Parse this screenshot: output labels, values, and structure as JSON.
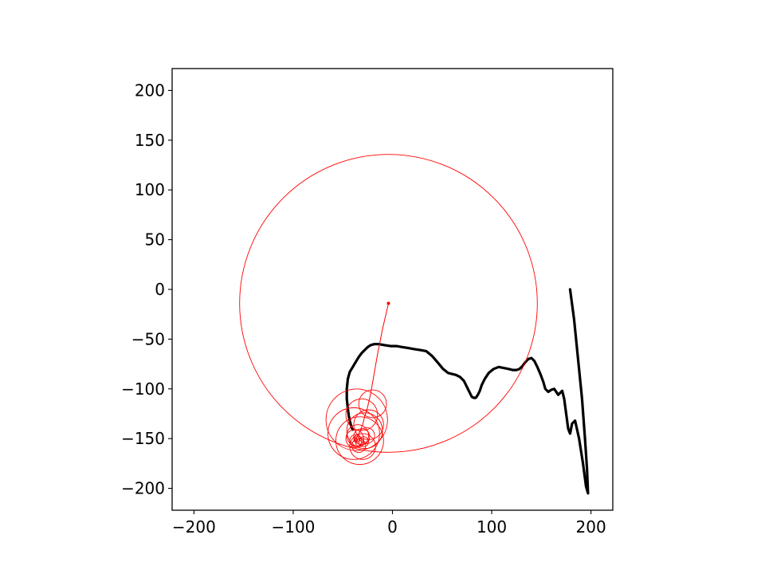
{
  "chart_data": {
    "type": "line",
    "title": "",
    "xlabel": "",
    "ylabel": "",
    "xlim": [
      -222,
      222
    ],
    "ylim": [
      -222,
      222
    ],
    "aspect": "equal",
    "grid": false,
    "legend": "none",
    "x_ticks": [
      -200,
      -100,
      0,
      100,
      200
    ],
    "x_tick_labels": [
      "−200",
      "−100",
      "0",
      "100",
      "200"
    ],
    "y_ticks": [
      200,
      150,
      100,
      50,
      0,
      -50,
      -100,
      -150,
      -200
    ],
    "y_tick_labels": [
      "200",
      "150",
      "100",
      "50",
      "0",
      "−50",
      "−100",
      "−150",
      "−200"
    ],
    "series": [
      {
        "style": "thick-line",
        "color": "#000000",
        "x": [
          179,
          183,
          187,
          191,
          194,
          196,
          197,
          195,
          192,
          188,
          184,
          181,
          179,
          177,
          175,
          173,
          171,
          169,
          167,
          165,
          163,
          160,
          157,
          154,
          152,
          149,
          146,
          143,
          140,
          137,
          134,
          131,
          128,
          125,
          121,
          117,
          112,
          107,
          102,
          97,
          93,
          90,
          88,
          86,
          84,
          82,
          80,
          78,
          75,
          72,
          68,
          64,
          60,
          56,
          51,
          46,
          40,
          34,
          28,
          22,
          16,
          10,
          4,
          -2,
          -8,
          -14,
          -18,
          -22,
          -25,
          -28,
          -31,
          -34,
          -37,
          -40,
          -43,
          -45,
          -46,
          -46,
          -45,
          -44,
          -43,
          -42,
          -41,
          -40
        ],
        "y": [
          0,
          -30,
          -70,
          -110,
          -150,
          -180,
          -205,
          -198,
          -175,
          -150,
          -132,
          -135,
          -145,
          -140,
          -125,
          -110,
          -102,
          -104,
          -106,
          -103,
          -100,
          -101,
          -103,
          -100,
          -93,
          -85,
          -78,
          -72,
          -69,
          -70,
          -73,
          -77,
          -80,
          -81,
          -81,
          -80,
          -79,
          -78,
          -80,
          -84,
          -90,
          -96,
          -102,
          -106,
          -109,
          -109,
          -108,
          -104,
          -98,
          -92,
          -88,
          -86,
          -85,
          -84,
          -80,
          -74,
          -67,
          -62,
          -61,
          -60,
          -59,
          -58,
          -57,
          -57,
          -56,
          -55,
          -55,
          -56,
          -58,
          -61,
          -64,
          -68,
          -73,
          -78,
          -83,
          -90,
          -100,
          -110,
          -120,
          -127,
          -132,
          -136,
          -139,
          -141
        ]
      },
      {
        "style": "epicycle-path",
        "color": "#ff0000",
        "x": [
          -4,
          -10,
          -15,
          -19,
          -22,
          -25,
          -28,
          -30,
          -32,
          -34,
          -35,
          -36,
          -37,
          -38,
          -37,
          -36,
          -35,
          -36,
          -37,
          -38
        ],
        "y": [
          -14,
          -40,
          -65,
          -88,
          -105,
          -118,
          -128,
          -136,
          -141,
          -145,
          -147,
          -149,
          -150,
          -151,
          -152,
          -153,
          -152,
          -151,
          -150,
          -149
        ]
      }
    ],
    "circles": {
      "color": "#ff0000",
      "cx": [
        -4,
        -20,
        -31,
        -36,
        -39,
        -33,
        -28,
        -24,
        -30,
        -35,
        -38,
        -31,
        -26,
        -34,
        -37,
        -29,
        -33,
        -36
      ],
      "cy": [
        -14,
        -115,
        -126,
        -131,
        -145,
        -152,
        -142,
        -136,
        -158,
        -147,
        -150,
        -148,
        -147,
        -157,
        -152,
        -153,
        -154,
        -151
      ],
      "r": [
        150,
        14,
        16,
        31,
        26,
        24,
        18,
        15,
        13,
        11,
        9,
        8,
        8,
        7,
        6,
        5,
        4,
        3
      ]
    },
    "center_marker": {
      "x": -4,
      "y": -14,
      "color": "#ff0000"
    }
  }
}
